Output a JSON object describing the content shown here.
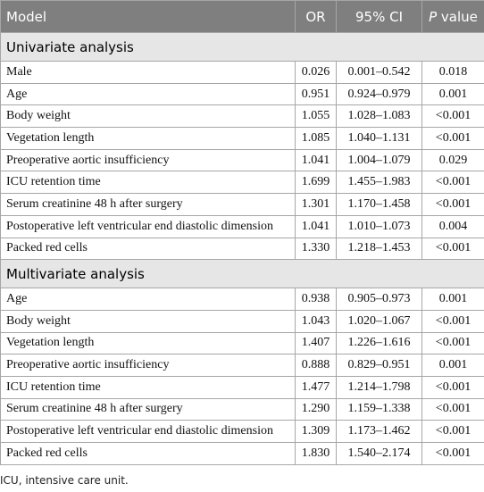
{
  "table": {
    "header": {
      "model": "Model",
      "or": "OR",
      "ci": "95% CI",
      "p_italic": "P",
      "p_rest": "value"
    },
    "sections": [
      {
        "title": "Univariate analysis",
        "rows": [
          [
            "Male",
            "0.026",
            "0.001–0.542",
            "0.018"
          ],
          [
            "Age",
            "0.951",
            "0.924–0.979",
            "0.001"
          ],
          [
            "Body weight",
            "1.055",
            "1.028–1.083",
            "<0.001"
          ],
          [
            "Vegetation length",
            "1.085",
            "1.040–1.131",
            "<0.001"
          ],
          [
            "Preoperative aortic insufficiency",
            "1.041",
            "1.004–1.079",
            "0.029"
          ],
          [
            "ICU retention time",
            "1.699",
            "1.455–1.983",
            "<0.001"
          ],
          [
            "Serum creatinine 48 h after surgery",
            "1.301",
            "1.170–1.458",
            "<0.001"
          ],
          [
            "Postoperative left ventricular end diastolic dimension",
            "1.041",
            "1.010–1.073",
            "0.004"
          ],
          [
            "Packed red cells",
            "1.330",
            "1.218–1.453",
            "<0.001"
          ]
        ]
      },
      {
        "title": "Multivariate analysis",
        "rows": [
          [
            "Age",
            "0.938",
            "0.905–0.973",
            "0.001"
          ],
          [
            "Body weight",
            "1.043",
            "1.020–1.067",
            "<0.001"
          ],
          [
            "Vegetation length",
            "1.407",
            "1.226–1.616",
            "<0.001"
          ],
          [
            "Preoperative aortic insufficiency",
            "0.888",
            "0.829–0.951",
            "0.001"
          ],
          [
            "ICU retention time",
            "1.477",
            "1.214–1.798",
            "<0.001"
          ],
          [
            "Serum creatinine 48 h after surgery",
            "1.290",
            "1.159–1.338",
            "<0.001"
          ],
          [
            "Postoperative left ventricular end diastolic dimension",
            "1.309",
            "1.173–1.462",
            "<0.001"
          ],
          [
            "Packed red cells",
            "1.830",
            "1.540–2.174",
            "<0.001"
          ]
        ]
      }
    ]
  },
  "footnote": "ICU, intensive care unit."
}
